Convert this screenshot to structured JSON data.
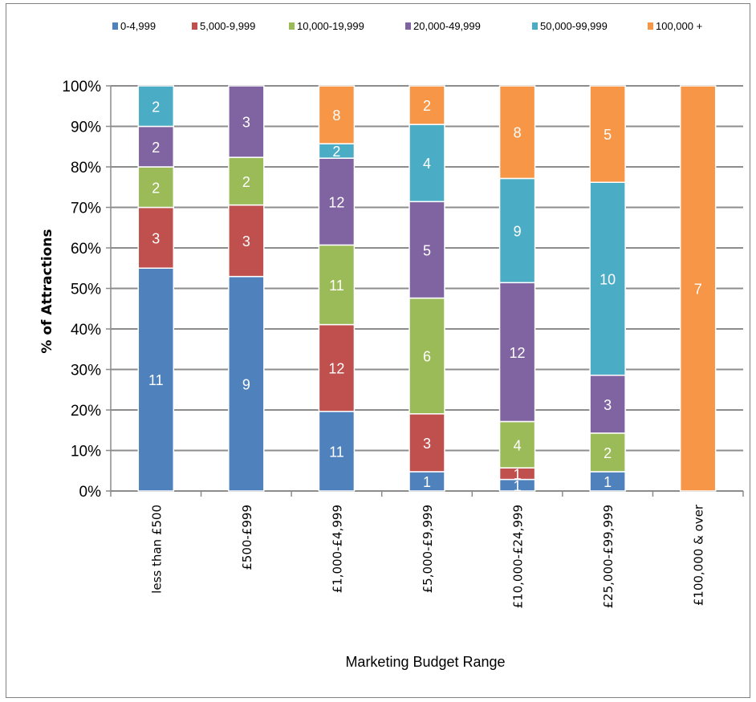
{
  "chart_data": {
    "type": "bar",
    "stacked": "percent",
    "title": "",
    "xlabel": "Marketing  Budget Range",
    "ylabel": "% of Attractions",
    "ylim": [
      0,
      100
    ],
    "yticks": [
      "0%",
      "10%",
      "20%",
      "30%",
      "40%",
      "50%",
      "60%",
      "70%",
      "80%",
      "90%",
      "100%"
    ],
    "grid": true,
    "legend_position": "top",
    "categories": [
      "less than £500",
      "£500-£999",
      "£1,000-£4,999",
      "£5,000-£9,999",
      "£10,000-£24,999",
      "£25,000-£99,999",
      "£100,000 & over"
    ],
    "series": [
      {
        "name": "0-4,999",
        "color": "#4f81bd",
        "values": [
          11,
          9,
          11,
          1,
          1,
          1,
          0
        ]
      },
      {
        "name": "5,000-9,999",
        "color": "#c0504d",
        "values": [
          3,
          3,
          12,
          3,
          1,
          0,
          0
        ]
      },
      {
        "name": "10,000-19,999",
        "color": "#9bbb59",
        "values": [
          2,
          2,
          11,
          6,
          4,
          2,
          0
        ]
      },
      {
        "name": "20,000-49,999",
        "color": "#8064a2",
        "values": [
          2,
          3,
          12,
          5,
          12,
          3,
          0
        ]
      },
      {
        "name": "50,000-99,999",
        "color": "#4bacc6",
        "values": [
          2,
          0,
          2,
          4,
          9,
          10,
          0
        ]
      },
      {
        "name": "100,000 +",
        "color": "#f79646",
        "values": [
          0,
          0,
          8,
          2,
          8,
          5,
          7
        ]
      }
    ]
  }
}
